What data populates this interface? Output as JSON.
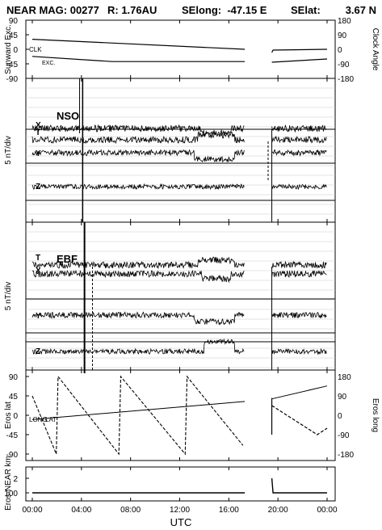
{
  "header": {
    "mission": "NEAR MAG: 00277",
    "range": "R: 1.76AU",
    "selong": "SElong:  -47.15 E",
    "selat": "SElat:",
    "selat_value": "3.67 N"
  },
  "colors": {
    "ink": "#000000",
    "grid": "#c8c8c8",
    "background": "#ffffff"
  },
  "chart_data": {
    "type": "line",
    "xlabel": "UTC",
    "x_ticks": [
      "00:00",
      "04:00",
      "08:00",
      "12:00",
      "16:00",
      "20:00",
      "00:00"
    ],
    "x_range_hours": [
      0,
      24
    ],
    "panels": [
      {
        "id": "angles",
        "left_label": "Sunward Exc.",
        "right_label": "Clock Angle",
        "left_ticks": [
          "45",
          "0",
          "-45",
          "-90"
        ],
        "left_top_tick": "90",
        "right_ticks": [
          "180",
          "90",
          "0",
          "-90",
          "-180"
        ],
        "annotations": [
          "CLK",
          "EXC."
        ],
        "series": [
          {
            "name": "CLK",
            "segments": [
              [
                [
                  0,
                  62
                ],
                [
                  17.3,
                  0
                ]
              ],
              [
                [
                  19.5,
                  -20
                ],
                [
                  19.6,
                  -5
                ],
                [
                  24,
                  0
                ]
              ]
            ]
          },
          {
            "name": "EXC.",
            "segments": [
              [
                [
                  0,
                  -22
                ],
                [
                  6.5,
                  -38
                ],
                [
                  17.3,
                  -38
                ]
              ],
              [
                [
                  19.5,
                  -40
                ],
                [
                  24,
                  -30
                ]
              ]
            ]
          }
        ]
      },
      {
        "id": "nso",
        "label": "NSO",
        "scale_label": "5 nT/div",
        "components": [
          "T",
          "X",
          "Y",
          "Z"
        ]
      },
      {
        "id": "ebf",
        "label": "EBF",
        "scale_label": "5 nT/div",
        "components": [
          "T",
          "X",
          "Y",
          "Z"
        ]
      },
      {
        "id": "eros",
        "left_label": "Eros lat",
        "right_label": "Eros long",
        "left_ticks": [
          "90",
          "45",
          "0",
          "-45",
          "-90"
        ],
        "right_ticks": [
          "180",
          "90",
          "0",
          "-90",
          "-180"
        ],
        "annotations": [
          "LONG",
          "LAT"
        ],
        "series": [
          {
            "name": "LAT",
            "segments": [
              [
                [
                  0,
                  -10
                ],
                [
                  17.3,
                  32
                ]
              ],
              [
                [
                  19.5,
                  38
                ],
                [
                  24,
                  68
                ]
              ]
            ]
          },
          {
            "name": "LONG",
            "sawtooth_peaks_hours": [
              2.1,
              7.2,
              12.6
            ],
            "segments": [
              [
                [
                  19.5,
                  45
                ],
                [
                  23.2,
                  -90
                ],
                [
                  24,
                  -60
                ]
              ]
            ]
          }
        ]
      },
      {
        "id": "range",
        "left_label": "Eros-NEAR km",
        "left_ticks": [
          "2",
          "100"
        ],
        "series": [
          {
            "name": "range",
            "segments": [
              [
                [
                  0,
                  100
                ],
                [
                  17.3,
                  100
                ]
              ],
              [
                [
                  19.5,
                  150
                ],
                [
                  19.6,
                  100
                ],
                [
                  24,
                  102
                ]
              ]
            ]
          }
        ]
      }
    ]
  }
}
